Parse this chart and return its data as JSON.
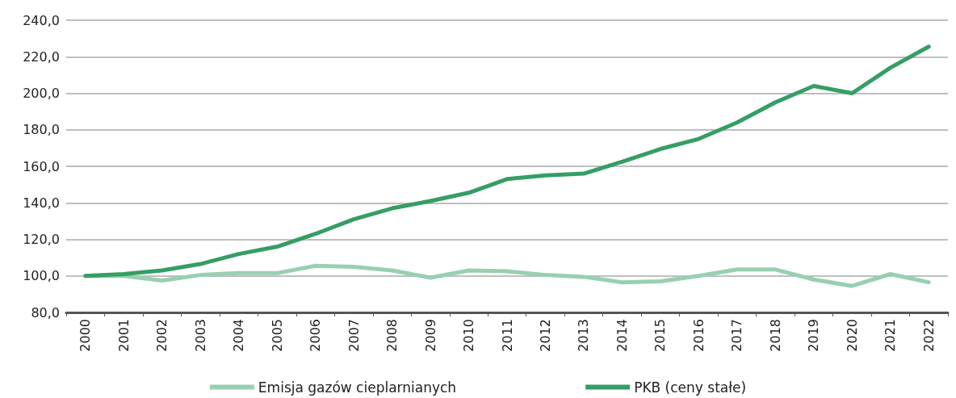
{
  "chart_data": {
    "type": "line",
    "categories": [
      "2000",
      "2001",
      "2002",
      "2003",
      "2004",
      "2005",
      "2006",
      "2007",
      "2008",
      "2009",
      "2010",
      "2011",
      "2012",
      "2013",
      "2014",
      "2015",
      "2016",
      "2017",
      "2018",
      "2019",
      "2020",
      "2021",
      "2022"
    ],
    "series": [
      {
        "name": "Emisja gazów cieplarnianych",
        "color": "#98d0b0",
        "values": [
          100,
          100,
          97.5,
          100.5,
          101.5,
          101.5,
          105.5,
          105,
          103,
          99,
          103,
          102.5,
          100.5,
          99.5,
          96.5,
          97,
          100,
          103.5,
          103.5,
          98,
          94.5,
          101,
          96.5
        ]
      },
      {
        "name": "PKB (ceny stałe)",
        "color": "#359e64",
        "values": [
          100,
          101,
          103,
          106.5,
          112,
          116,
          123,
          131,
          137,
          141,
          145.5,
          153,
          155,
          156,
          162.5,
          169.5,
          175,
          184,
          195,
          204,
          200,
          214,
          225.5
        ]
      }
    ],
    "ylim": [
      80,
      240
    ],
    "yticks": [
      {
        "value": 80,
        "label": "80,0"
      },
      {
        "value": 100,
        "label": "100,0"
      },
      {
        "value": 120,
        "label": "120,0"
      },
      {
        "value": 140,
        "label": "140,0"
      },
      {
        "value": 160,
        "label": "160,0"
      },
      {
        "value": 180,
        "label": "180,0"
      },
      {
        "value": 200,
        "label": "200,0"
      },
      {
        "value": 220,
        "label": "220,0"
      },
      {
        "value": 240,
        "label": "240,0"
      }
    ],
    "grid": "y",
    "legend": "bottom",
    "marker": "none",
    "line_style": "solid"
  }
}
